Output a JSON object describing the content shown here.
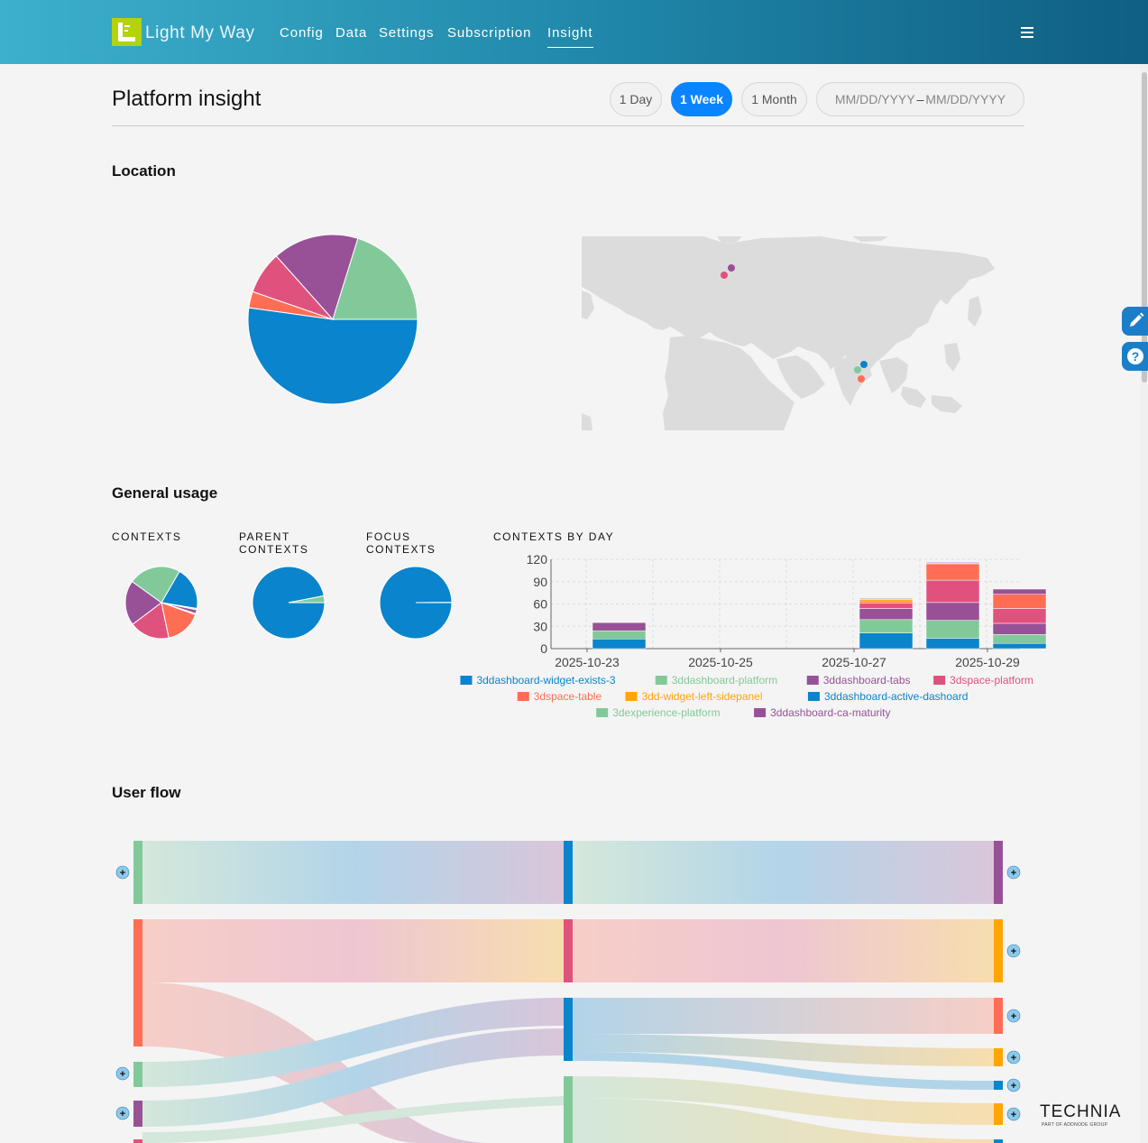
{
  "app": {
    "name": "Light My Way"
  },
  "nav": {
    "items": [
      "Config",
      "Data",
      "Settings",
      "Subscription",
      "Insight"
    ],
    "active": "Insight"
  },
  "page": {
    "title": "Platform insight"
  },
  "range_buttons": [
    "1 Day",
    "1 Week",
    "1 Month"
  ],
  "range_active": "1 Week",
  "date_range": {
    "start": "MM/DD/YYYY",
    "separator": "–",
    "end": "MM/DD/YYYY"
  },
  "sections": {
    "location": "Location",
    "general_usage": "General usage",
    "user_flow": "User flow"
  },
  "mini_titles": {
    "contexts": "CONTEXTS",
    "parent_contexts": "PARENT CONTEXTS",
    "focus_contexts": "FOCUS CONTEXTS",
    "contexts_by_day": "CONTEXTS BY DAY"
  },
  "colors": {
    "blue": "#0a84cc",
    "green": "#82c99a",
    "purple": "#985197",
    "pink": "#e0527e",
    "coral": "#ff6e54",
    "orange": "#ffa600",
    "accent": "#0a84ff"
  },
  "icons": {
    "edit": "pencil-icon",
    "help": "question-icon",
    "menu": "hamburger-icon",
    "expand": "plus-icon"
  },
  "map_points": [
    {
      "color": "#985197",
      "region": "Northern Europe"
    },
    {
      "color": "#e0527e",
      "region": "Northern Europe"
    },
    {
      "color": "#0a84cc",
      "region": "India"
    },
    {
      "color": "#82c99a",
      "region": "India"
    },
    {
      "color": "#ff6e54",
      "region": "India"
    }
  ],
  "chart_data": [
    {
      "type": "pie",
      "id": "location",
      "slices": [
        {
          "color": "#0a84cc",
          "value": 0.522
        },
        {
          "color": "#ff6e54",
          "value": 0.031
        },
        {
          "color": "#e0527e",
          "value": 0.081
        },
        {
          "color": "#985197",
          "value": 0.164
        },
        {
          "color": "#82c99a",
          "value": 0.202
        }
      ]
    },
    {
      "type": "pie",
      "id": "contexts",
      "slices": [
        {
          "color": "#0a84cc",
          "value": 0.193
        },
        {
          "color": "#82c99a",
          "value": 0.006
        },
        {
          "color": "#985197",
          "value": 0.017
        },
        {
          "color": "#0a84cc",
          "value": 0.005
        },
        {
          "color": "#ff6e54",
          "value": 0.163
        },
        {
          "color": "#e0527e",
          "value": 0.18
        },
        {
          "color": "#985197",
          "value": 0.202
        },
        {
          "color": "#82c99a",
          "value": 0.234
        }
      ]
    },
    {
      "type": "pie",
      "id": "parent_contexts",
      "slices": [
        {
          "color": "#0a84cc",
          "value": 0.97
        },
        {
          "color": "#82c99a",
          "value": 0.03
        }
      ]
    },
    {
      "type": "pie",
      "id": "focus_contexts",
      "slices": [
        {
          "color": "#0a84cc",
          "value": 0.999
        },
        {
          "color": "#ffffff",
          "value": 0.001
        }
      ]
    },
    {
      "type": "bar",
      "id": "contexts_by_day",
      "stacked": true,
      "x": [
        "2025-10-23",
        "2025-10-24",
        "2025-10-25",
        "2025-10-26",
        "2025-10-27",
        "2025-10-28",
        "2025-10-29"
      ],
      "x_tick_labels": [
        "2025-10-23",
        "2025-10-25",
        "2025-10-27",
        "2025-10-29"
      ],
      "ylim": [
        0,
        120
      ],
      "yticks": [
        0,
        30,
        60,
        90,
        120
      ],
      "grid": true,
      "legend_position": "bottom",
      "series": [
        {
          "name": "3ddashboard-widget-exists-3",
          "color": "#0a84cc",
          "values": [
            13,
            0,
            0,
            0,
            21,
            14,
            7
          ]
        },
        {
          "name": "3ddashboard-platform",
          "color": "#82c99a",
          "values": [
            11,
            0,
            0,
            0,
            18,
            24,
            12
          ]
        },
        {
          "name": "3ddashboard-tabs",
          "color": "#985197",
          "values": [
            11,
            0,
            0,
            0,
            15,
            24,
            15
          ]
        },
        {
          "name": "3dspace-platform",
          "color": "#e0527e",
          "values": [
            0,
            0,
            0,
            0,
            7,
            30,
            20
          ]
        },
        {
          "name": "3dspace-table",
          "color": "#ff6e54",
          "values": [
            0,
            0,
            0,
            0,
            3,
            22,
            19
          ]
        },
        {
          "name": "3dd-widget-left-sidepanel",
          "color": "#ffa600",
          "values": [
            0,
            0,
            0,
            0,
            2,
            0,
            0
          ]
        },
        {
          "name": "3ddashboard-active-dashoard",
          "color": "#0a84cc",
          "values": [
            0,
            0,
            0,
            0,
            0,
            1,
            0
          ]
        },
        {
          "name": "3dexperience-platform",
          "color": "#82c99a",
          "values": [
            0,
            0,
            0,
            0,
            1,
            0,
            0
          ]
        },
        {
          "name": "3ddashboard-ca-maturity",
          "color": "#985197",
          "values": [
            0,
            0,
            0,
            0,
            1,
            1,
            7
          ]
        }
      ]
    }
  ],
  "footer": {
    "brand": "TECHNIA",
    "tagline": "PART OF ADDNODE GROUP"
  }
}
